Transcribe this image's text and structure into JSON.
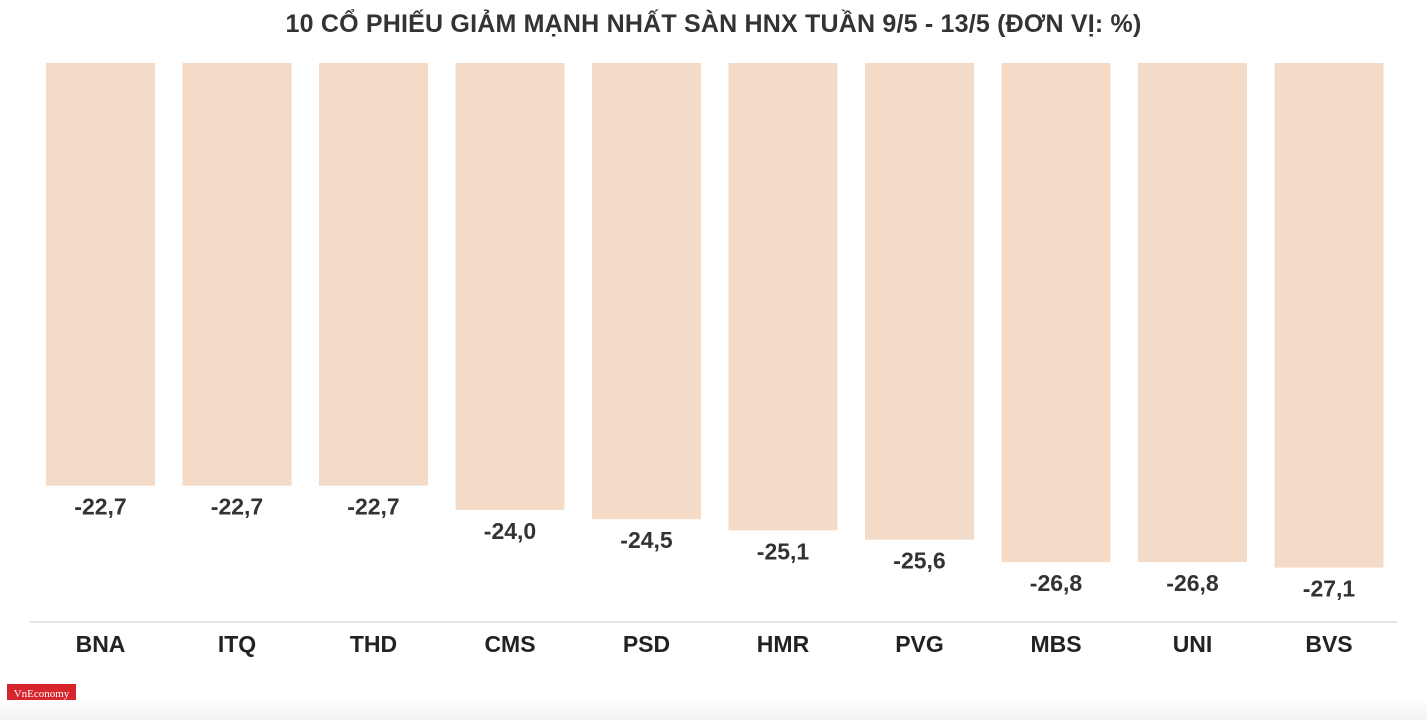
{
  "chart_data": {
    "type": "bar",
    "title": "10 CỔ PHIẾU GIẢM MẠNH NHẤT SÀN HNX TUẦN 9/5 - 13/5 (ĐƠN VỊ: %)",
    "xlabel": "",
    "ylabel": "",
    "categories": [
      "BNA",
      "ITQ",
      "THD",
      "CMS",
      "PSD",
      "HMR",
      "PVG",
      "MBS",
      "UNI",
      "BVS"
    ],
    "values": [
      -22.7,
      -22.7,
      -22.7,
      -24.0,
      -24.5,
      -25.1,
      -25.6,
      -26.8,
      -26.8,
      -27.1
    ],
    "value_labels": [
      "-22,7",
      "-22,7",
      "-22,7",
      "-24,0",
      "-24,5",
      "-25,1",
      "-25,6",
      "-26,8",
      "-26,8",
      "-27,1"
    ],
    "ylim": [
      -30,
      0
    ],
    "grid": false,
    "legend": "none",
    "colors": {
      "bar": "#f3dbc8",
      "axis": "#e4e4e4"
    }
  },
  "logo": {
    "text": "VnEconomy"
  }
}
